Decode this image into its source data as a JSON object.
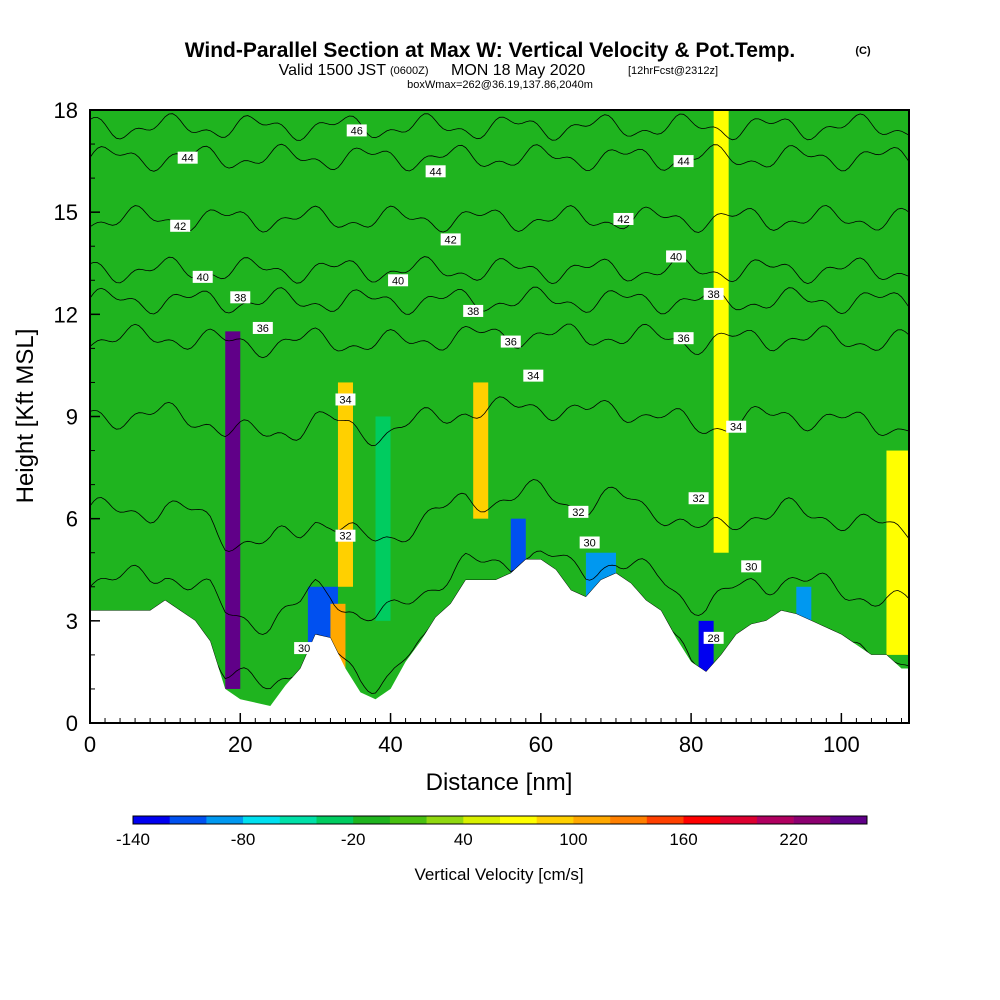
{
  "header": {
    "title_main": "Wind-Parallel Section at Max W: Vertical Velocity & Pot.Temp.",
    "title_mark": "(C)",
    "valid_prefix": "Valid 1500 JST",
    "valid_utc": "(0600Z)",
    "valid_date": "MON 18 May 2020",
    "forecast": "[12hrFcst@2312z]",
    "box_info": "boxWmax=262@36.19,137.86,2040m"
  },
  "chart_data": {
    "type": "heatmap",
    "title": "Wind-Parallel Section at Max W: Vertical Velocity & Pot.Temp.",
    "xlabel": "Distance [nm]",
    "ylabel": "Height [Kft MSL]",
    "xlim": [
      0,
      109
    ],
    "ylim": [
      0,
      18
    ],
    "x_ticks": [
      0,
      20,
      40,
      60,
      80,
      100
    ],
    "y_ticks": [
      0,
      3,
      6,
      9,
      12,
      15,
      18
    ],
    "x_tick_labels": [
      "0",
      "20",
      "40",
      "60",
      "80",
      "100"
    ],
    "y_tick_labels": [
      "0",
      "3",
      "6",
      "9",
      "12",
      "15",
      "18"
    ],
    "x_minor_step": 2,
    "y_minor_step": 1,
    "colorbar": {
      "label": "Vertical Velocity [cm/s]",
      "min": -140,
      "step": 20,
      "tick_values": [
        -140,
        -80,
        -20,
        40,
        100,
        160,
        220
      ],
      "tick_labels": [
        "-140",
        "-80",
        "-20",
        "40",
        "100",
        "160",
        "220"
      ],
      "colors": [
        "#0000f0",
        "#0050f0",
        "#0098f0",
        "#00e0f0",
        "#00e0a8",
        "#00cc60",
        "#1fb41f",
        "#48c010",
        "#90d810",
        "#d8f000",
        "#ffff00",
        "#ffd000",
        "#ffa800",
        "#ff8000",
        "#ff4000",
        "#ff0000",
        "#dd0030",
        "#b00060",
        "#8c0070",
        "#600088"
      ]
    },
    "background_value": -10,
    "cells": [
      {
        "x": [
          18,
          20
        ],
        "y": [
          1,
          11.5
        ],
        "w": 260
      },
      {
        "x": [
          29,
          33
        ],
        "y": [
          2,
          4
        ],
        "w": -120
      },
      {
        "x": [
          32,
          34
        ],
        "y": [
          0.5,
          3.5
        ],
        "w": 100
      },
      {
        "x": [
          33,
          35
        ],
        "y": [
          4,
          10
        ],
        "w": 80
      },
      {
        "x": [
          38,
          40
        ],
        "y": [
          3,
          9
        ],
        "w": -40
      },
      {
        "x": [
          51,
          53
        ],
        "y": [
          6,
          10
        ],
        "w": 90
      },
      {
        "x": [
          56,
          58
        ],
        "y": [
          4,
          6
        ],
        "w": -110
      },
      {
        "x": [
          66,
          70
        ],
        "y": [
          3.5,
          5
        ],
        "w": -100
      },
      {
        "x": [
          81,
          83
        ],
        "y": [
          1.5,
          3
        ],
        "w": -140
      },
      {
        "x": [
          83,
          85
        ],
        "y": [
          5,
          18
        ],
        "w": 60
      },
      {
        "x": [
          94,
          96
        ],
        "y": [
          3,
          4
        ],
        "w": -90
      },
      {
        "x": [
          106,
          109
        ],
        "y": [
          2,
          8
        ],
        "w": 70
      }
    ],
    "terrain": {
      "x": [
        0,
        8,
        10,
        12,
        14,
        16,
        18,
        20,
        22,
        24,
        26,
        28,
        30,
        32,
        34,
        36,
        38,
        40,
        42,
        44,
        46,
        48,
        50,
        52,
        54,
        56,
        58,
        60,
        62,
        64,
        66,
        68,
        70,
        72,
        74,
        76,
        78,
        80,
        82,
        84,
        86,
        88,
        90,
        92,
        94,
        96,
        98,
        100,
        102,
        104,
        106,
        108,
        109
      ],
      "height": [
        3.3,
        3.3,
        3.6,
        3.3,
        3.0,
        2.4,
        1.0,
        0.7,
        0.6,
        0.5,
        1.1,
        1.6,
        2.6,
        2.5,
        1.6,
        0.9,
        0.7,
        1.0,
        1.8,
        2.4,
        3.1,
        3.5,
        4.2,
        4.2,
        4.2,
        4.4,
        4.8,
        4.8,
        4.5,
        3.9,
        3.7,
        4.2,
        4.4,
        4.1,
        3.6,
        3.3,
        2.5,
        1.8,
        1.5,
        2.0,
        2.6,
        2.9,
        3.0,
        3.3,
        3.2,
        3.0,
        2.8,
        2.6,
        2.3,
        2.0,
        2.0,
        1.6,
        1.6
      ]
    },
    "theta_contours": [
      {
        "theta": 28,
        "label": "28"
      },
      {
        "theta": 30,
        "label": "30"
      },
      {
        "theta": 32,
        "label": "32"
      },
      {
        "theta": 34,
        "label": "34"
      },
      {
        "theta": 36,
        "label": "36"
      },
      {
        "theta": 38,
        "label": "38"
      },
      {
        "theta": 40,
        "label": "40"
      },
      {
        "theta": 42,
        "label": "42"
      },
      {
        "theta": 44,
        "label": "44"
      },
      {
        "theta": 46,
        "label": "46"
      }
    ],
    "contour_labels": [
      {
        "x": 35.5,
        "y": 17.4,
        "text": "46"
      },
      {
        "x": 13,
        "y": 16.6,
        "text": "44"
      },
      {
        "x": 46,
        "y": 16.2,
        "text": "44"
      },
      {
        "x": 79,
        "y": 16.5,
        "text": "44"
      },
      {
        "x": 12,
        "y": 14.6,
        "text": "42"
      },
      {
        "x": 48,
        "y": 14.2,
        "text": "42"
      },
      {
        "x": 71,
        "y": 14.8,
        "text": "42"
      },
      {
        "x": 15,
        "y": 13.1,
        "text": "40"
      },
      {
        "x": 41,
        "y": 13.0,
        "text": "40"
      },
      {
        "x": 78,
        "y": 13.7,
        "text": "40"
      },
      {
        "x": 20,
        "y": 12.5,
        "text": "38"
      },
      {
        "x": 51,
        "y": 12.1,
        "text": "38"
      },
      {
        "x": 83,
        "y": 12.6,
        "text": "38"
      },
      {
        "x": 23,
        "y": 11.6,
        "text": "36"
      },
      {
        "x": 56,
        "y": 11.2,
        "text": "36"
      },
      {
        "x": 79,
        "y": 11.3,
        "text": "36"
      },
      {
        "x": 34,
        "y": 9.5,
        "text": "34"
      },
      {
        "x": 59,
        "y": 10.2,
        "text": "34"
      },
      {
        "x": 86,
        "y": 8.7,
        "text": "34"
      },
      {
        "x": 34,
        "y": 5.5,
        "text": "32"
      },
      {
        "x": 65,
        "y": 6.2,
        "text": "32"
      },
      {
        "x": 81,
        "y": 6.6,
        "text": "32"
      },
      {
        "x": 28.5,
        "y": 2.2,
        "text": "30"
      },
      {
        "x": 66.5,
        "y": 5.3,
        "text": "30"
      },
      {
        "x": 88,
        "y": 4.6,
        "text": "30"
      },
      {
        "x": 83,
        "y": 2.5,
        "text": "28"
      }
    ]
  }
}
